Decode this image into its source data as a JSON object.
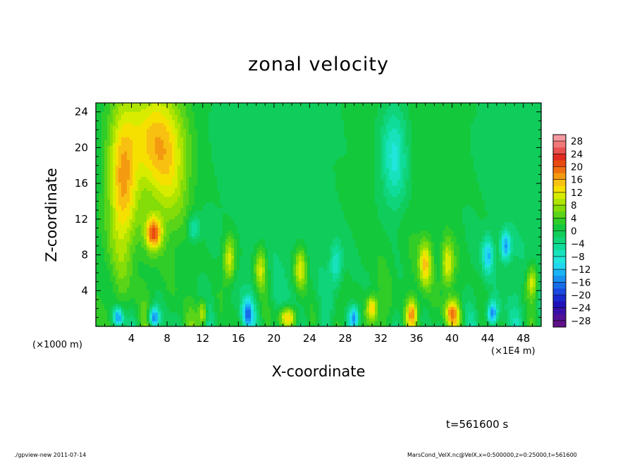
{
  "chart_data": {
    "type": "heatmap",
    "title": "zonal velocity",
    "xlabel": "X-coordinate",
    "ylabel": "Z-coordinate",
    "x_unit_left": "(×1000 m)",
    "x_unit_right": "(×1E4 m)",
    "time_label": "t=561600 s",
    "xlim": [
      0,
      50
    ],
    "ylim": [
      0,
      25
    ],
    "x_ticks": [
      4,
      8,
      12,
      16,
      20,
      24,
      28,
      32,
      36,
      40,
      44,
      48
    ],
    "y_ticks": [
      4,
      8,
      12,
      16,
      20,
      24
    ],
    "colorbar": {
      "labels": [
        "28",
        "24",
        "20",
        "16",
        "12",
        "8",
        "4",
        "0",
        "−4",
        "−8",
        "−12",
        "−16",
        "−20",
        "−24",
        "−28"
      ],
      "levels": [
        30,
        28,
        26,
        24,
        22,
        20,
        18,
        16,
        14,
        12,
        10,
        8,
        6,
        4,
        2,
        0,
        -2,
        -4,
        -6,
        -8,
        -10,
        -12,
        -14,
        -16,
        -18,
        -20,
        -22,
        -24,
        -26,
        -28,
        -30
      ],
      "colors": [
        "#f59aa0",
        "#f07878",
        "#ea5050",
        "#e22a20",
        "#e84a10",
        "#f07010",
        "#f49a10",
        "#f8c010",
        "#f6e000",
        "#d8ec00",
        "#aee400",
        "#84dc08",
        "#5ad418",
        "#30cc28",
        "#14c83c",
        "#10cc5a",
        "#10d47a",
        "#10dc9a",
        "#18e2bc",
        "#20e6dc",
        "#20d8f0",
        "#1ab4f4",
        "#1890f0",
        "#186ce8",
        "#1a48e0",
        "#1a28d0",
        "#2010b8",
        "#3810a8",
        "#501098",
        "#601088"
      ]
    },
    "features": [
      {
        "x": 3,
        "z": 16,
        "value": 14,
        "sx": 1.6,
        "sz": 9
      },
      {
        "x": 6.5,
        "z": 21,
        "value": 12,
        "sx": 2.8,
        "sz": 6
      },
      {
        "x": 8.5,
        "z": 17,
        "value": 7,
        "sx": 2.2,
        "sz": 7
      },
      {
        "x": 6.5,
        "z": 10.5,
        "value": 18,
        "sx": 0.9,
        "sz": 1.8
      },
      {
        "x": 33.5,
        "z": 19,
        "value": -10,
        "sx": 1.5,
        "sz": 6
      },
      {
        "x": 11,
        "z": 11,
        "value": -8,
        "sx": 0.7,
        "sz": 1.5
      },
      {
        "x": 21.5,
        "z": 1,
        "value": 16,
        "sx": 1.0,
        "sz": 1.2
      },
      {
        "x": 40,
        "z": 1.5,
        "value": 16,
        "sx": 0.8,
        "sz": 1.5
      },
      {
        "x": 2.5,
        "z": 1,
        "value": -18,
        "sx": 0.6,
        "sz": 1.2
      },
      {
        "x": 6.5,
        "z": 1,
        "value": -18,
        "sx": 0.6,
        "sz": 1.2
      },
      {
        "x": 15,
        "z": 7.5,
        "value": 12,
        "sx": 0.7,
        "sz": 2.5
      },
      {
        "x": 18.5,
        "z": 6.5,
        "value": 11,
        "sx": 0.7,
        "sz": 2.5
      },
      {
        "x": 23,
        "z": 6.5,
        "value": 12,
        "sx": 0.7,
        "sz": 2.5
      },
      {
        "x": 37,
        "z": 7,
        "value": 13,
        "sx": 0.7,
        "sz": 2.5
      },
      {
        "x": 39.5,
        "z": 7,
        "value": 12,
        "sx": 0.7,
        "sz": 2.5
      },
      {
        "x": 27,
        "z": 7,
        "value": -9,
        "sx": 0.7,
        "sz": 2.5
      },
      {
        "x": 44,
        "z": 8,
        "value": -12,
        "sx": 0.6,
        "sz": 2.0
      },
      {
        "x": 46,
        "z": 9,
        "value": -14,
        "sx": 0.6,
        "sz": 1.6
      },
      {
        "x": 31,
        "z": 2,
        "value": 15,
        "sx": 0.6,
        "sz": 1.5
      },
      {
        "x": 35.5,
        "z": 1.5,
        "value": 14,
        "sx": 0.6,
        "sz": 1.5
      },
      {
        "x": 12,
        "z": 1.5,
        "value": 13,
        "sx": 0.5,
        "sz": 1.5
      },
      {
        "x": 17,
        "z": 1.5,
        "value": -14,
        "sx": 0.6,
        "sz": 1.5
      },
      {
        "x": 29,
        "z": 1,
        "value": -15,
        "sx": 0.6,
        "sz": 1.3
      },
      {
        "x": 44.5,
        "z": 1.5,
        "value": -16,
        "sx": 0.6,
        "sz": 1.3
      },
      {
        "x": 49,
        "z": 5,
        "value": 12,
        "sx": 0.6,
        "sz": 1.8
      }
    ]
  },
  "footer": {
    "left": "./gpview-new  2011-07-14",
    "right": "MarsCond_VelX.nc@VelX,x=0:500000,z=0:25000,t=561600"
  }
}
